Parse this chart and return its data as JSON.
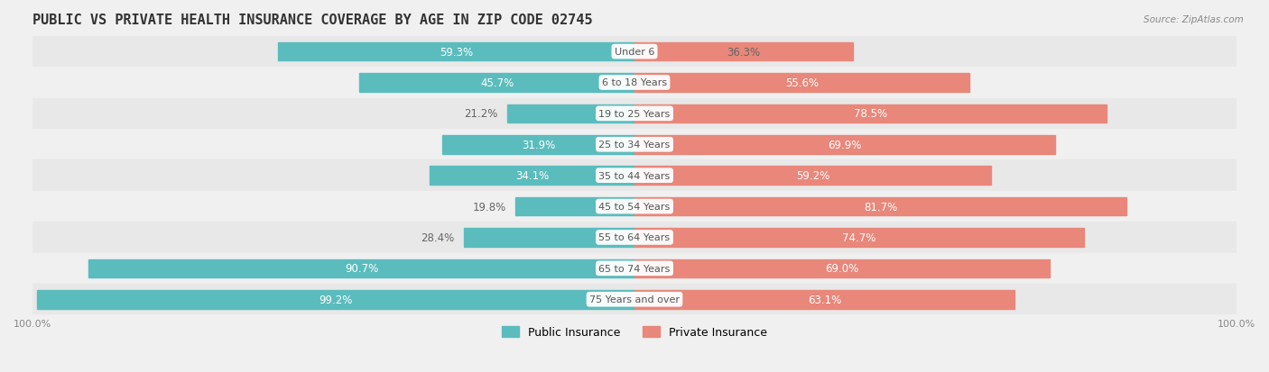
{
  "title": "PUBLIC VS PRIVATE HEALTH INSURANCE COVERAGE BY AGE IN ZIP CODE 02745",
  "source": "Source: ZipAtlas.com",
  "categories": [
    "Under 6",
    "6 to 18 Years",
    "19 to 25 Years",
    "25 to 34 Years",
    "35 to 44 Years",
    "45 to 54 Years",
    "55 to 64 Years",
    "65 to 74 Years",
    "75 Years and over"
  ],
  "public_values": [
    59.3,
    45.7,
    21.2,
    31.9,
    34.1,
    19.8,
    28.4,
    90.7,
    99.2
  ],
  "private_values": [
    36.3,
    55.6,
    78.5,
    69.9,
    59.2,
    81.7,
    74.7,
    69.0,
    63.1
  ],
  "public_color": "#5bbcbd",
  "private_color": "#e8877a",
  "background_color": "#f0f0f0",
  "bar_background": "#ffffff",
  "row_bg_light": "#f5f5f5",
  "row_bg_dark": "#e8e8e8",
  "label_color_dark": "#666666",
  "label_color_white": "#ffffff",
  "center_label_color": "#555555",
  "title_color": "#333333",
  "axis_label_color": "#888888",
  "max_value": 100.0,
  "bar_height": 0.6,
  "title_fontsize": 11,
  "bar_label_fontsize": 8.5,
  "category_fontsize": 8,
  "legend_fontsize": 9,
  "axis_fontsize": 8
}
